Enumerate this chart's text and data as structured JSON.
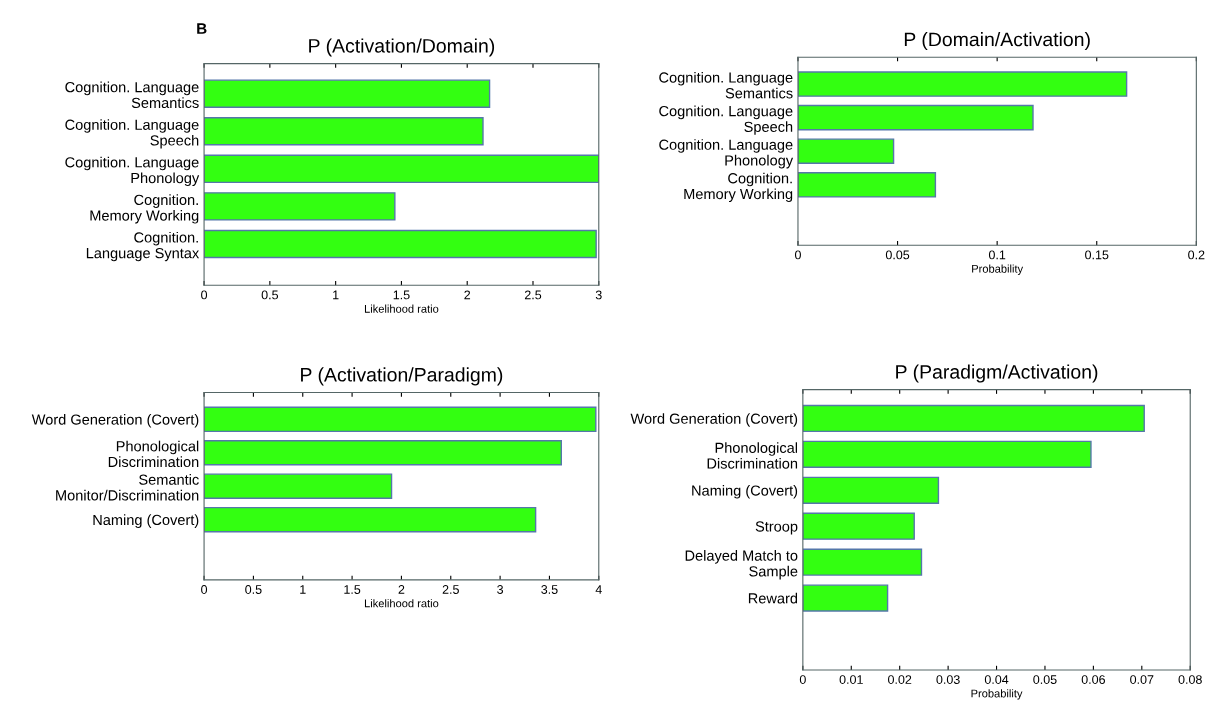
{
  "chart_data": [
    {
      "type": "bar",
      "orientation": "horizontal",
      "title": "P (Activation/Domain)",
      "xlabel": "Likelihood ratio",
      "annotations": [
        "B"
      ],
      "categories": [
        "Cognition. Language\nSemantics",
        "Cognition. Language\nSpeech",
        "Cognition. Language\nPhonology",
        "Cognition.\nMemory Working",
        "Cognition.\nLanguage Syntax"
      ],
      "values": [
        2.17,
        2.12,
        3.0,
        1.45,
        2.98
      ],
      "color": "#33ff11",
      "xlim": [
        0,
        3
      ],
      "xticks": [
        0,
        0.5,
        1,
        1.5,
        2,
        2.5,
        3
      ],
      "grid": false
    },
    {
      "type": "bar",
      "orientation": "horizontal",
      "title": "P (Domain/Activation)",
      "xlabel": "Probability",
      "categories": [
        "Cognition. Language\nSemantics",
        "Cognition. Language\nSpeech",
        "Cognition. Language\nPhonology",
        "Cognition.\nMemory Working"
      ],
      "values": [
        0.165,
        0.118,
        0.048,
        0.069
      ],
      "color": "#33ff11",
      "xlim": [
        0,
        0.2
      ],
      "xticks": [
        0,
        0.05,
        0.1,
        0.15,
        0.2
      ],
      "grid": false
    },
    {
      "type": "bar",
      "orientation": "horizontal",
      "title": "P (Activation/Paradigm)",
      "xlabel": "Likelihood ratio",
      "categories": [
        "Word Generation (Covert)",
        "Phonological\nDiscrimination",
        "Semantic\nMonitor/Discrimination",
        "Naming (Covert)"
      ],
      "values": [
        3.97,
        3.62,
        1.9,
        3.36
      ],
      "color": "#33ff11",
      "xlim": [
        0,
        4
      ],
      "xticks": [
        0,
        0.5,
        1,
        1.5,
        2,
        2.5,
        3,
        3.5,
        4
      ],
      "grid": false
    },
    {
      "type": "bar",
      "orientation": "horizontal",
      "title": "P (Paradigm/Activation)",
      "xlabel": "Probability",
      "categories": [
        "Word Generation (Covert)",
        "Phonological\nDiscrimination",
        "Naming (Covert)",
        "Stroop",
        "Delayed Match to\nSample",
        "Reward"
      ],
      "values": [
        0.0705,
        0.0595,
        0.028,
        0.023,
        0.0245,
        0.0175
      ],
      "color": "#33ff11",
      "xlim": [
        0,
        0.08
      ],
      "xticks": [
        0,
        0.01,
        0.02,
        0.03,
        0.04,
        0.05,
        0.06,
        0.07,
        0.08
      ],
      "grid": false
    }
  ]
}
